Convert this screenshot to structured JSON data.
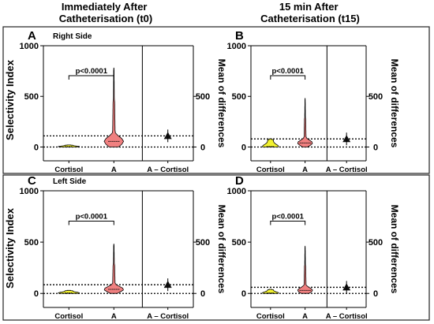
{
  "figure": {
    "titles": [
      "Immediately After\nCatheterisation (t0)",
      "15 min After\nCatheterisation (t15)"
    ],
    "row_label": "Selectivity Index",
    "colors": {
      "cortisol_fill": "#f2f230",
      "a_fill": "#f08080",
      "diff_marker": "#111111",
      "frame": "#222222"
    }
  },
  "chart_data": [
    {
      "type": "violin",
      "panel": "A",
      "side_label": "Right Side",
      "categories": [
        "Cortisol",
        "A",
        "A – Cortisol"
      ],
      "ylabel": "Selectivity Index",
      "y2label": "Mean of differences",
      "ylim": [
        0,
        1000
      ],
      "yticks": [
        0,
        500,
        1000
      ],
      "y2ticks": [
        0,
        500
      ],
      "significance": "p<0.0001",
      "series": [
        {
          "name": "Cortisol",
          "min": 0,
          "max": 20,
          "median": 4
        },
        {
          "name": "A",
          "min": 0,
          "max": 780,
          "median": 55
        },
        {
          "name": "A – Cortisol",
          "mean": 110,
          "lines": [
            0,
            110
          ]
        }
      ]
    },
    {
      "type": "violin",
      "panel": "B",
      "side_label": "",
      "categories": [
        "Cortisol",
        "A",
        "A – Cortisol"
      ],
      "ylabel": "",
      "y2label": "Mean of differences",
      "ylim": [
        0,
        1000
      ],
      "yticks": [
        0,
        500,
        1000
      ],
      "y2ticks": [
        0,
        500
      ],
      "significance": "p<0.0001",
      "series": [
        {
          "name": "Cortisol",
          "min": 0,
          "max": 80,
          "median": 5
        },
        {
          "name": "A",
          "min": 0,
          "max": 480,
          "median": 40
        },
        {
          "name": "A – Cortisol",
          "mean": 80,
          "lines": [
            0,
            80
          ]
        }
      ]
    },
    {
      "type": "violin",
      "panel": "C",
      "side_label": "Left Side",
      "categories": [
        "Cortisol",
        "A",
        "A – Cortisol"
      ],
      "ylabel": "Selectivity Index",
      "y2label": "Mean of differences",
      "ylim": [
        0,
        1000
      ],
      "yticks": [
        0,
        500,
        1000
      ],
      "y2ticks": [
        0,
        500
      ],
      "significance": "p<0.0001",
      "series": [
        {
          "name": "Cortisol",
          "min": 0,
          "max": 30,
          "median": 5
        },
        {
          "name": "A",
          "min": 0,
          "max": 480,
          "median": 40
        },
        {
          "name": "A – Cortisol",
          "mean": 85,
          "lines": [
            0,
            85
          ]
        }
      ]
    },
    {
      "type": "violin",
      "panel": "D",
      "side_label": "",
      "categories": [
        "Cortisol",
        "A",
        "A – Cortisol"
      ],
      "ylabel": "",
      "y2label": "Mean of differences",
      "ylim": [
        0,
        1000
      ],
      "yticks": [
        0,
        500,
        1000
      ],
      "y2ticks": [
        0,
        500
      ],
      "significance": "p<0.0001",
      "series": [
        {
          "name": "Cortisol",
          "min": 0,
          "max": 40,
          "median": 5
        },
        {
          "name": "A",
          "min": 0,
          "max": 460,
          "median": 30
        },
        {
          "name": "A – Cortisol",
          "mean": 60,
          "lines": [
            0,
            60
          ]
        }
      ]
    }
  ]
}
